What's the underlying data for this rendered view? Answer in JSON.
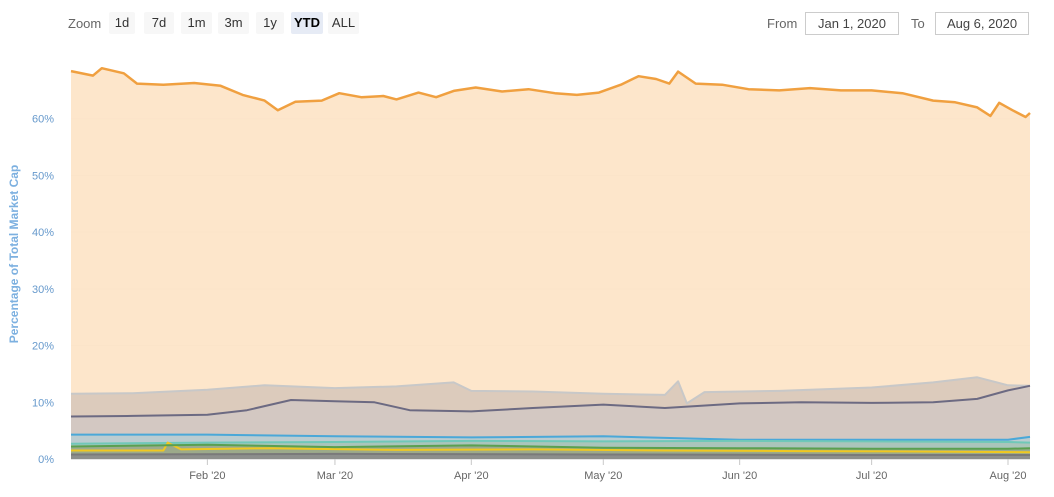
{
  "toolbar": {
    "zoom_label": "Zoom",
    "zoom_buttons": [
      "1d",
      "7d",
      "1m",
      "3m",
      "1y",
      "YTD",
      "ALL"
    ],
    "active_zoom": "YTD",
    "from_label": "From",
    "from_value": "Jan 1, 2020",
    "to_label": "To",
    "to_value": "Aug 6, 2020"
  },
  "chart_data": {
    "type": "area",
    "ylabel": "Percentage of Total Market Cap",
    "y_unit": "%",
    "ylim": [
      0,
      70
    ],
    "y_ticks": [
      "0%",
      "10%",
      "20%",
      "30%",
      "40%",
      "50%",
      "60%"
    ],
    "x_tick_labels": [
      "Feb '20",
      "Mar '20",
      "Apr '20",
      "May '20",
      "Jun '20",
      "Jul '20",
      "Aug '20"
    ],
    "x_ticks": [
      "2020-02-01",
      "2020-03-01",
      "2020-04-01",
      "2020-05-01",
      "2020-06-01",
      "2020-07-01",
      "2020-08-01"
    ],
    "x_range": [
      "2020-01-01",
      "2020-08-06"
    ],
    "grid": true,
    "legend": "none",
    "series": [
      {
        "color": "#f0a040",
        "fill": "#fde3c5",
        "points": [
          [
            "2020-01-01",
            68.4
          ],
          [
            "2020-01-06",
            67.6
          ],
          [
            "2020-01-08",
            68.9
          ],
          [
            "2020-01-13",
            68.0
          ],
          [
            "2020-01-16",
            66.2
          ],
          [
            "2020-01-22",
            66.0
          ],
          [
            "2020-01-29",
            66.3
          ],
          [
            "2020-02-04",
            65.8
          ],
          [
            "2020-02-09",
            64.2
          ],
          [
            "2020-02-14",
            63.2
          ],
          [
            "2020-02-17",
            61.5
          ],
          [
            "2020-02-21",
            63.0
          ],
          [
            "2020-02-27",
            63.2
          ],
          [
            "2020-03-02",
            64.5
          ],
          [
            "2020-03-07",
            63.8
          ],
          [
            "2020-03-12",
            64.0
          ],
          [
            "2020-03-15",
            63.4
          ],
          [
            "2020-03-20",
            64.6
          ],
          [
            "2020-03-24",
            63.8
          ],
          [
            "2020-03-28",
            64.9
          ],
          [
            "2020-04-02",
            65.5
          ],
          [
            "2020-04-08",
            64.8
          ],
          [
            "2020-04-14",
            65.2
          ],
          [
            "2020-04-20",
            64.5
          ],
          [
            "2020-04-25",
            64.2
          ],
          [
            "2020-04-30",
            64.6
          ],
          [
            "2020-05-05",
            66.0
          ],
          [
            "2020-05-09",
            67.5
          ],
          [
            "2020-05-13",
            67.0
          ],
          [
            "2020-05-16",
            66.2
          ],
          [
            "2020-05-18",
            68.3
          ],
          [
            "2020-05-22",
            66.2
          ],
          [
            "2020-05-28",
            66.0
          ],
          [
            "2020-06-03",
            65.2
          ],
          [
            "2020-06-10",
            65.0
          ],
          [
            "2020-06-17",
            65.4
          ],
          [
            "2020-06-24",
            65.0
          ],
          [
            "2020-07-01",
            65.0
          ],
          [
            "2020-07-08",
            64.5
          ],
          [
            "2020-07-15",
            63.2
          ],
          [
            "2020-07-20",
            62.9
          ],
          [
            "2020-07-25",
            62.0
          ],
          [
            "2020-07-28",
            60.5
          ],
          [
            "2020-07-30",
            62.8
          ],
          [
            "2020-08-02",
            61.5
          ],
          [
            "2020-08-05",
            60.3
          ],
          [
            "2020-08-06",
            61.0
          ]
        ]
      },
      {
        "color": "#c8c8c8",
        "fill": "#d8c8ba",
        "points": [
          [
            "2020-01-01",
            11.5
          ],
          [
            "2020-01-15",
            11.6
          ],
          [
            "2020-02-01",
            12.2
          ],
          [
            "2020-02-14",
            13.0
          ],
          [
            "2020-03-01",
            12.5
          ],
          [
            "2020-03-15",
            12.8
          ],
          [
            "2020-03-28",
            13.5
          ],
          [
            "2020-04-01",
            12.0
          ],
          [
            "2020-04-15",
            11.9
          ],
          [
            "2020-05-01",
            11.5
          ],
          [
            "2020-05-15",
            11.3
          ],
          [
            "2020-05-18",
            13.7
          ],
          [
            "2020-05-20",
            9.8
          ],
          [
            "2020-05-24",
            11.8
          ],
          [
            "2020-06-10",
            12.0
          ],
          [
            "2020-07-01",
            12.6
          ],
          [
            "2020-07-15",
            13.5
          ],
          [
            "2020-07-25",
            14.4
          ],
          [
            "2020-08-01",
            13.0
          ],
          [
            "2020-08-06",
            12.9
          ]
        ]
      },
      {
        "color": "#6c6a82",
        "fill": "#d2c8c2",
        "points": [
          [
            "2020-01-01",
            7.5
          ],
          [
            "2020-01-15",
            7.6
          ],
          [
            "2020-02-01",
            7.8
          ],
          [
            "2020-02-10",
            8.6
          ],
          [
            "2020-02-20",
            10.4
          ],
          [
            "2020-03-01",
            10.2
          ],
          [
            "2020-03-10",
            10.0
          ],
          [
            "2020-03-18",
            8.6
          ],
          [
            "2020-04-01",
            8.4
          ],
          [
            "2020-04-15",
            9.0
          ],
          [
            "2020-05-01",
            9.6
          ],
          [
            "2020-05-15",
            9.0
          ],
          [
            "2020-06-01",
            9.8
          ],
          [
            "2020-06-15",
            10.0
          ],
          [
            "2020-07-01",
            9.9
          ],
          [
            "2020-07-15",
            10.0
          ],
          [
            "2020-07-25",
            10.6
          ],
          [
            "2020-08-01",
            12.1
          ],
          [
            "2020-08-06",
            12.9
          ]
        ]
      },
      {
        "color": "#4aa8d8",
        "fill": "#b8ccd2",
        "points": [
          [
            "2020-01-01",
            4.3
          ],
          [
            "2020-02-01",
            4.3
          ],
          [
            "2020-03-01",
            4.0
          ],
          [
            "2020-04-01",
            3.8
          ],
          [
            "2020-05-01",
            4.0
          ],
          [
            "2020-06-01",
            3.4
          ],
          [
            "2020-07-01",
            3.4
          ],
          [
            "2020-08-01",
            3.4
          ],
          [
            "2020-08-06",
            3.9
          ]
        ]
      },
      {
        "color": "#70c8b8",
        "fill": "#a8c4b8",
        "points": [
          [
            "2020-01-01",
            2.7
          ],
          [
            "2020-02-01",
            2.9
          ],
          [
            "2020-03-01",
            3.0
          ],
          [
            "2020-04-01",
            3.2
          ],
          [
            "2020-05-01",
            3.1
          ],
          [
            "2020-06-01",
            3.2
          ],
          [
            "2020-07-01",
            3.1
          ],
          [
            "2020-08-01",
            3.0
          ],
          [
            "2020-08-06",
            2.9
          ]
        ]
      },
      {
        "color": "#f0c820",
        "fill": "#b0b890",
        "points": [
          [
            "2020-01-01",
            1.5
          ],
          [
            "2020-01-22",
            1.5
          ],
          [
            "2020-01-23",
            2.9
          ],
          [
            "2020-01-26",
            1.7
          ],
          [
            "2020-02-15",
            1.9
          ],
          [
            "2020-03-15",
            1.6
          ],
          [
            "2020-04-15",
            1.7
          ],
          [
            "2020-05-15",
            1.5
          ],
          [
            "2020-06-15",
            1.4
          ],
          [
            "2020-07-15",
            1.3
          ],
          [
            "2020-08-06",
            1.2
          ]
        ]
      },
      {
        "color": "#5aa050",
        "fill": "#9aa888",
        "points": [
          [
            "2020-01-01",
            2.2
          ],
          [
            "2020-02-01",
            2.5
          ],
          [
            "2020-03-01",
            2.1
          ],
          [
            "2020-04-01",
            2.4
          ],
          [
            "2020-05-01",
            2.0
          ],
          [
            "2020-06-01",
            1.9
          ],
          [
            "2020-07-01",
            1.8
          ],
          [
            "2020-08-01",
            1.8
          ],
          [
            "2020-08-06",
            1.9
          ]
        ]
      },
      {
        "color": "#7a7a7a",
        "fill": "#8c8c8c",
        "points": [
          [
            "2020-01-01",
            0.8
          ],
          [
            "2020-03-01",
            0.9
          ],
          [
            "2020-05-01",
            0.8
          ],
          [
            "2020-07-01",
            0.7
          ],
          [
            "2020-08-06",
            0.7
          ]
        ]
      }
    ]
  }
}
